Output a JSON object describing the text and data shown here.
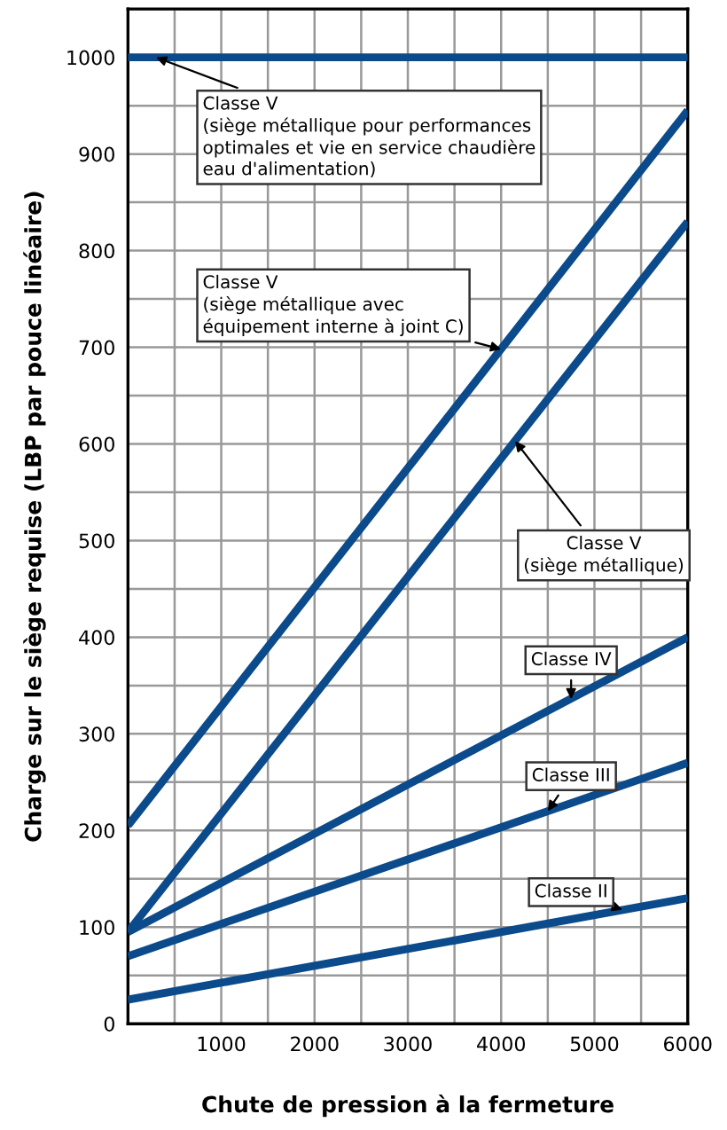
{
  "chart_data": {
    "type": "line",
    "xlabel": "Chute de pression à la fermeture",
    "ylabel": "Charge sur le siège requise (LBP par pouce linéaire)",
    "x": [
      0,
      6000
    ],
    "series": [
      {
        "color": "#0b4a8b",
        "values": [
          1000,
          1000
        ]
      },
      {
        "color": "#0b4a8b",
        "values": [
          205,
          945
        ]
      },
      {
        "color": "#0b4a8b",
        "values": [
          95,
          830
        ]
      },
      {
        "color": "#0b4a8b",
        "values": [
          95,
          400
        ]
      },
      {
        "color": "#0b4a8b",
        "values": [
          70,
          270
        ]
      },
      {
        "color": "#0b4a8b",
        "values": [
          25,
          130
        ]
      }
    ],
    "xlim": [
      0,
      6000
    ],
    "xticks": [
      1000,
      2000,
      3000,
      4000,
      5000,
      6000
    ],
    "ylim": [
      0,
      1050
    ],
    "yticks": [
      0,
      100,
      200,
      300,
      400,
      500,
      600,
      700,
      800,
      900,
      1000
    ],
    "grid": true,
    "marker": "none",
    "line_style": "solid",
    "annotations": [
      {
        "text": "Classe V\n(siège métallique pour performances\noptimales et vie en service chaudière\neau d'alimentation)",
        "x": 300,
        "y": 1000
      },
      {
        "text": "Classe V\n(siège métallique avec\néquipement interne à joint C)",
        "x": 4000,
        "y": 698
      },
      {
        "text": "Classe V\n(siège métallique)",
        "x": 4150,
        "y": 603
      },
      {
        "text": "Classe IV",
        "x": 4750,
        "y": 336
      },
      {
        "text": "Classe III",
        "x": 4500,
        "y": 220
      },
      {
        "text": "Classe II",
        "x": 5300,
        "y": 118
      }
    ]
  }
}
